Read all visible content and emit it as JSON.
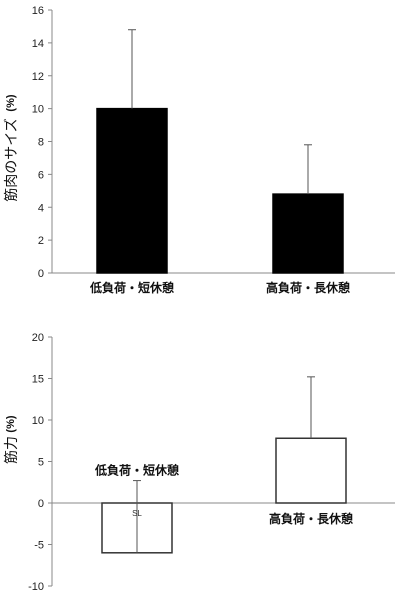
{
  "chart_data": [
    {
      "type": "bar",
      "ylabel_unit": "(%)",
      "ylabel": "筋肉のサイズ",
      "categories": [
        "低負荷・短休憩",
        "高負荷・長休憩"
      ],
      "values": [
        10.0,
        4.8
      ],
      "error_upper": [
        14.8,
        7.8
      ],
      "ylim": [
        0,
        16
      ],
      "yticks": [
        0,
        2,
        4,
        6,
        8,
        10,
        12,
        14,
        16
      ],
      "bar_fill": "#000000",
      "bar_stroke": "#000000",
      "grid": false
    },
    {
      "type": "bar",
      "ylabel_unit": "(%)",
      "ylabel": "筋力",
      "categories": [
        "低負荷・短休憩",
        "高負荷・長休憩"
      ],
      "values": [
        -6.0,
        7.8
      ],
      "error_upper": [
        2.7,
        15.2
      ],
      "error_lower": [
        -6.0,
        7.8
      ],
      "ylim": [
        -10,
        20
      ],
      "yticks": [
        -10,
        -5,
        0,
        5,
        10,
        15,
        20
      ],
      "bar_fill": "#ffffff",
      "bar_stroke": "#333333",
      "annotations": [
        {
          "category_index": 0,
          "text": "SL"
        }
      ],
      "grid": false
    }
  ]
}
